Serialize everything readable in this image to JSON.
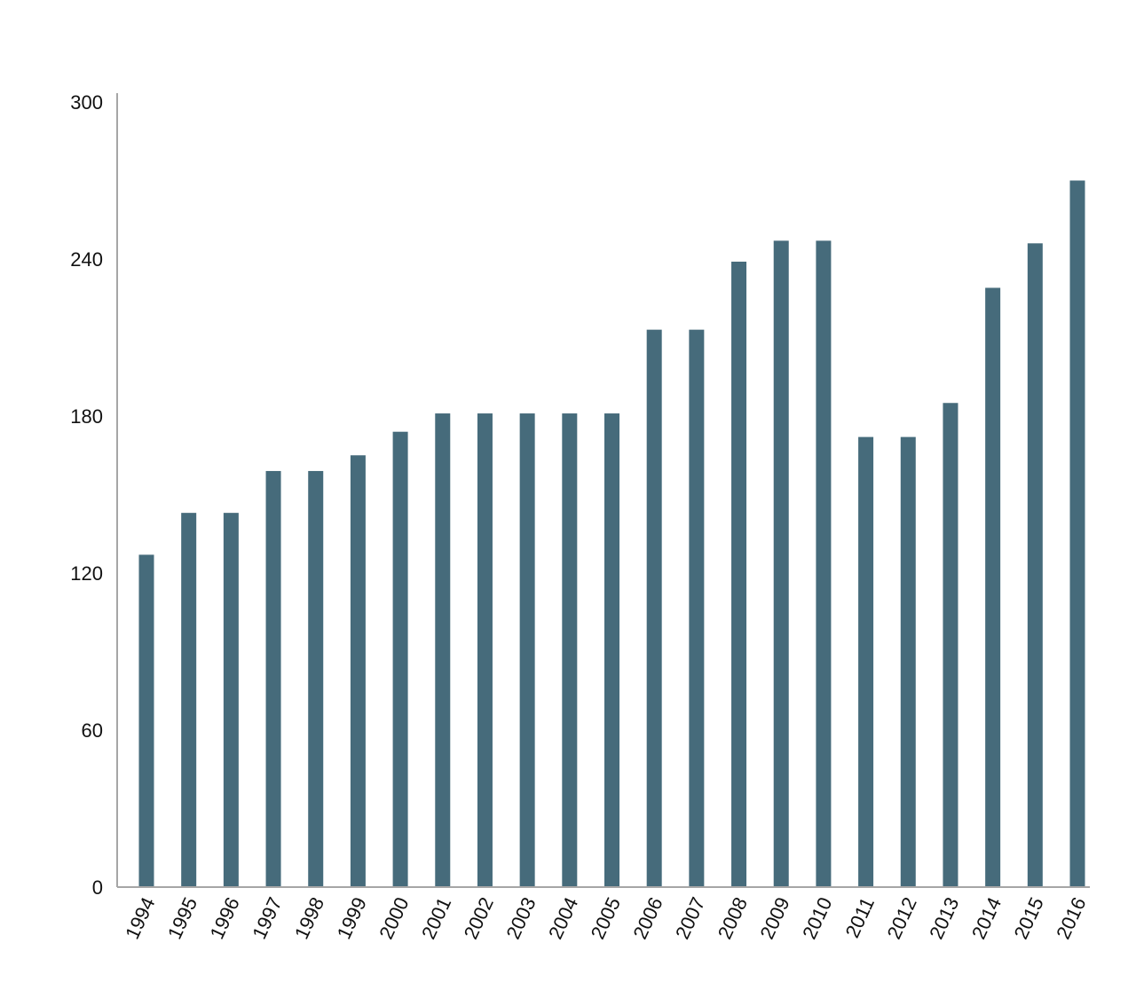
{
  "chart_data": {
    "type": "bar",
    "title": "",
    "xlabel": "",
    "ylabel": "",
    "categories": [
      "1994",
      "1995",
      "1996",
      "1997",
      "1998",
      "1999",
      "2000",
      "2001",
      "2002",
      "2003",
      "2004",
      "2005",
      "2006",
      "2007",
      "2008",
      "2009",
      "2010",
      "2011",
      "2012",
      "2013",
      "2014",
      "2015",
      "2016"
    ],
    "values": [
      127,
      143,
      143,
      159,
      159,
      165,
      174,
      181,
      181,
      181,
      181,
      181,
      213,
      213,
      239,
      247,
      247,
      172,
      172,
      185,
      229,
      246,
      270
    ],
    "ylim": [
      0,
      300
    ],
    "yticks": [
      0,
      60,
      120,
      180,
      240,
      300
    ],
    "ytick_labels": [
      "0",
      "60",
      "120",
      "180",
      "240",
      "300"
    ],
    "grid": false,
    "legend": "none",
    "bar_color": "#466b7b",
    "axis_color": "#a6a6a6"
  }
}
